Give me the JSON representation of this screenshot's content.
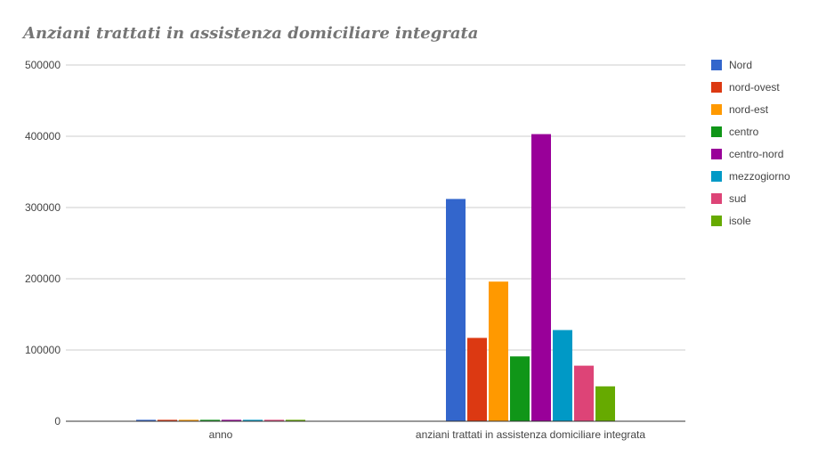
{
  "chart_data": {
    "type": "bar",
    "title": "Anziani trattati in assistenza domiciliare integrata",
    "categories": [
      "anno",
      "anziani trattati in assistenza domiciliare integrata"
    ],
    "ylim": [
      0,
      500000
    ],
    "yticks": [
      "0",
      "100000",
      "200000",
      "300000",
      "400000",
      "500000"
    ],
    "grid": true,
    "legend_position": "right",
    "series": [
      {
        "name": "Nord",
        "color": "#3366cc",
        "values": [
          2015,
          312000
        ]
      },
      {
        "name": "nord-ovest",
        "color": "#dc3912",
        "values": [
          2015,
          117000
        ]
      },
      {
        "name": "nord-est",
        "color": "#ff9900",
        "values": [
          2015,
          196000
        ]
      },
      {
        "name": "centro",
        "color": "#109618",
        "values": [
          2015,
          91000
        ]
      },
      {
        "name": "centro-nord",
        "color": "#990099",
        "values": [
          2015,
          403000
        ]
      },
      {
        "name": "mezzogiorno",
        "color": "#0099c6",
        "values": [
          2015,
          128000
        ]
      },
      {
        "name": "sud",
        "color": "#dd4477",
        "values": [
          2015,
          78000
        ]
      },
      {
        "name": "isole",
        "color": "#66aa00",
        "values": [
          2015,
          49000
        ]
      }
    ]
  }
}
